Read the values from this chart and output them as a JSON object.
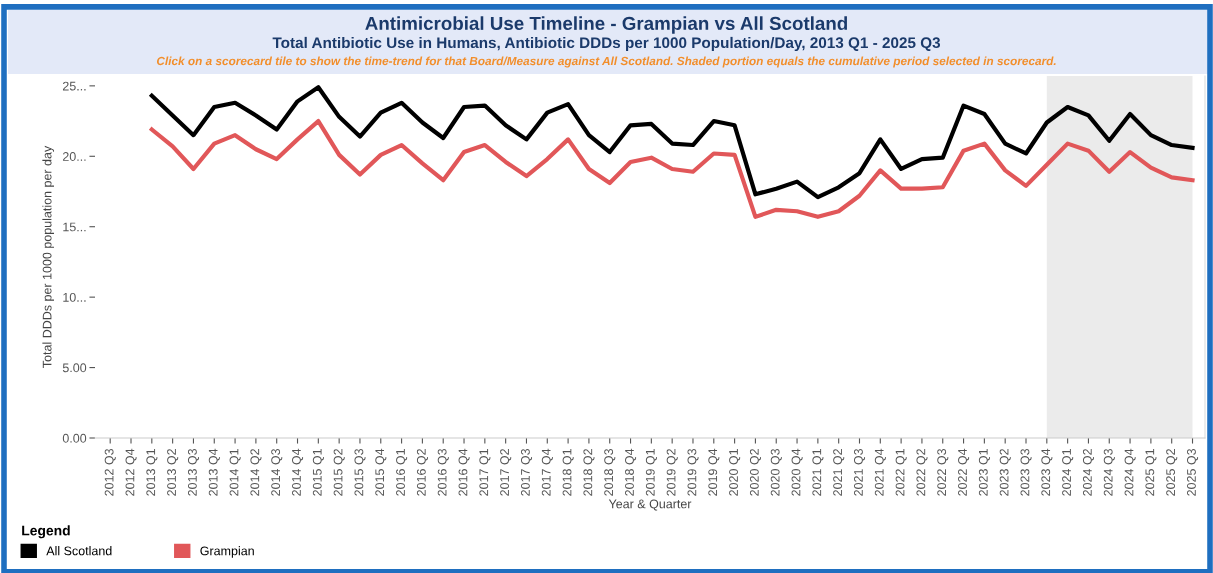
{
  "chart_data": {
    "type": "line",
    "title": "Antimicrobial Use Timeline - Grampian vs All Scotland",
    "subtitle": "Total Antibiotic Use in Humans, Antibiotic DDDs per 1000 Population/Day, 2013 Q1 - 2025 Q3",
    "annotations": [
      "Click on a scorecard tile to show the time-trend for that Board/Measure against All Scotland. Shaded portion equals the cumulative period selected in scorecard."
    ],
    "xlabel": "Year & Quarter",
    "ylabel": "Total DDDs per 1000 population per day",
    "legend_title": "Legend",
    "legend": "bottom left",
    "categories": [
      "2012 Q3",
      "2012 Q4",
      "2013 Q1",
      "2013 Q2",
      "2013 Q3",
      "2013 Q4",
      "2014 Q1",
      "2014 Q2",
      "2014 Q3",
      "2014 Q4",
      "2015 Q1",
      "2015 Q2",
      "2015 Q3",
      "2015 Q4",
      "2016 Q1",
      "2016 Q2",
      "2016 Q3",
      "2016 Q4",
      "2017 Q1",
      "2017 Q2",
      "2017 Q3",
      "2017 Q4",
      "2018 Q1",
      "2018 Q2",
      "2018 Q3",
      "2018 Q4",
      "2019 Q1",
      "2019 Q2",
      "2019 Q3",
      "2019 Q4",
      "2020 Q1",
      "2020 Q2",
      "2020 Q3",
      "2020 Q4",
      "2021 Q1",
      "2021 Q2",
      "2021 Q3",
      "2021 Q4",
      "2022 Q1",
      "2022 Q2",
      "2022 Q3",
      "2022 Q4",
      "2023 Q1",
      "2023 Q2",
      "2023 Q3",
      "2023 Q4",
      "2024 Q1",
      "2024 Q2",
      "2024 Q3",
      "2024 Q4",
      "2025 Q1",
      "2025 Q2",
      "2025 Q3"
    ],
    "series": [
      {
        "name": "All Scotland",
        "color": "#000000",
        "values": [
          null,
          null,
          24.3,
          22.9,
          21.5,
          23.5,
          23.8,
          22.9,
          21.9,
          23.9,
          24.9,
          22.8,
          21.4,
          23.1,
          23.8,
          22.4,
          21.3,
          23.5,
          23.6,
          22.2,
          21.2,
          23.1,
          23.7,
          21.5,
          20.3,
          22.2,
          22.3,
          20.9,
          20.8,
          22.5,
          22.2,
          17.3,
          17.7,
          18.2,
          17.1,
          17.8,
          18.8,
          21.2,
          19.1,
          19.8,
          19.9,
          23.6,
          23.0,
          20.9,
          20.2,
          22.4,
          23.5,
          22.9,
          21.1,
          23.0,
          21.5,
          20.8,
          20.6
        ]
      },
      {
        "name": "Grampian",
        "color": "#e15759",
        "values": [
          null,
          null,
          21.9,
          20.7,
          19.1,
          20.9,
          21.5,
          20.5,
          19.8,
          21.2,
          22.5,
          20.1,
          18.7,
          20.1,
          20.8,
          19.5,
          18.3,
          20.3,
          20.8,
          19.6,
          18.6,
          19.8,
          21.2,
          19.1,
          18.1,
          19.6,
          19.9,
          19.1,
          18.9,
          20.2,
          20.1,
          15.7,
          16.2,
          16.1,
          15.7,
          16.1,
          17.2,
          19.0,
          17.7,
          17.7,
          17.8,
          20.4,
          20.9,
          19.0,
          17.9,
          19.4,
          20.9,
          20.4,
          18.9,
          20.3,
          19.2,
          18.5,
          18.3
        ]
      }
    ],
    "bands": [
      {
        "axis": "x",
        "from": "2023 Q4",
        "to": "2025 Q3",
        "color": "#ebebeb"
      }
    ],
    "ylim": [
      0,
      25.7
    ],
    "yticks": [
      {
        "value": 0,
        "label": "0.00"
      },
      {
        "value": 5,
        "label": "5.00"
      },
      {
        "value": 10,
        "label": "10..."
      },
      {
        "value": 15,
        "label": "15..."
      },
      {
        "value": 20,
        "label": "20..."
      },
      {
        "value": 25,
        "label": "25..."
      }
    ],
    "grid": false,
    "marker": "none",
    "line_style": "solid"
  }
}
